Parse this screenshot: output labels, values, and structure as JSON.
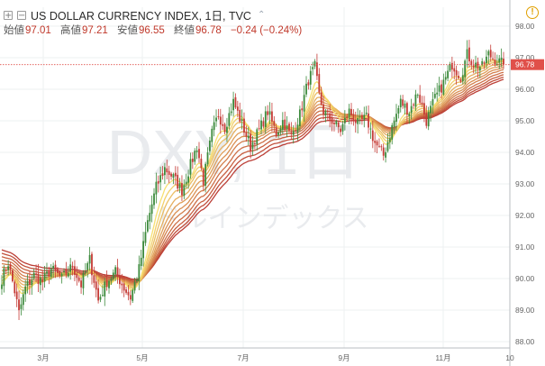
{
  "header": {
    "plus_symbol": "+",
    "minus_symbol": "−",
    "title": "US DOLLAR CURRENCY INDEX, 1日, TVC",
    "chevron": "⌃",
    "alert_symbol": "!",
    "ohlc": [
      {
        "label": "始値",
        "value": "97.01"
      },
      {
        "label": "高値",
        "value": "97.21"
      },
      {
        "label": "安値",
        "value": "96.55"
      },
      {
        "label": "終値",
        "value": "96.78"
      }
    ],
    "change": "−0.24 (−0.24%)"
  },
  "watermark": {
    "symbol": "DXY, 1日",
    "name": "ドルインデックス"
  },
  "colors": {
    "up": "#3c8a3c",
    "down": "#c53b36",
    "ribbon_fast": "#f7de6a",
    "ribbon_slow": "#b8352c",
    "price_label": "#e0504a"
  },
  "chart_data": {
    "type": "candlestick",
    "title": "US DOLLAR CURRENCY INDEX, 1日, TVC",
    "xlabel": "",
    "ylabel": "",
    "ylim": [
      87.8,
      98.6
    ],
    "x_ticks": [
      "3月",
      "5月",
      "7月",
      "9月",
      "11月",
      "10"
    ],
    "y_ticks": [
      "88.00",
      "89.00",
      "90.00",
      "91.00",
      "92.00",
      "93.00",
      "94.00",
      "95.00",
      "96.00",
      "97.00",
      "98.00"
    ],
    "last_price": "96.78",
    "price_anchors": [
      [
        0,
        90.0
      ],
      [
        3,
        90.5
      ],
      [
        6,
        89.6
      ],
      [
        8,
        88.9
      ],
      [
        11,
        89.7
      ],
      [
        15,
        90.1
      ],
      [
        19,
        89.9
      ],
      [
        23,
        90.3
      ],
      [
        28,
        90.0
      ],
      [
        33,
        90.4
      ],
      [
        37,
        89.8
      ],
      [
        41,
        90.6
      ],
      [
        45,
        89.3
      ],
      [
        49,
        89.9
      ],
      [
        53,
        90.2
      ],
      [
        57,
        89.7
      ],
      [
        60,
        89.4
      ],
      [
        64,
        90.3
      ],
      [
        68,
        91.8
      ],
      [
        72,
        92.9
      ],
      [
        76,
        93.5
      ],
      [
        80,
        93.2
      ],
      [
        84,
        92.8
      ],
      [
        88,
        93.6
      ],
      [
        91,
        94.2
      ],
      [
        94,
        93.1
      ],
      [
        98,
        94.6
      ],
      [
        101,
        95.2
      ],
      [
        104,
        94.8
      ],
      [
        108,
        95.6
      ],
      [
        112,
        94.9
      ],
      [
        116,
        94.2
      ],
      [
        120,
        94.7
      ],
      [
        124,
        95.3
      ],
      [
        128,
        94.6
      ],
      [
        131,
        95.0
      ],
      [
        135,
        94.5
      ],
      [
        139,
        95.2
      ],
      [
        143,
        96.3
      ],
      [
        146,
        96.7
      ],
      [
        148,
        95.8
      ],
      [
        150,
        95.3
      ],
      [
        154,
        95.0
      ],
      [
        158,
        94.7
      ],
      [
        162,
        95.3
      ],
      [
        166,
        94.9
      ],
      [
        170,
        95.1
      ],
      [
        174,
        94.3
      ],
      [
        178,
        93.9
      ],
      [
        182,
        94.8
      ],
      [
        186,
        95.6
      ],
      [
        190,
        95.3
      ],
      [
        194,
        95.9
      ],
      [
        198,
        95.0
      ],
      [
        202,
        95.7
      ],
      [
        206,
        96.2
      ],
      [
        210,
        96.8
      ],
      [
        214,
        96.4
      ],
      [
        217,
        97.1
      ],
      [
        220,
        96.8
      ],
      [
        224,
        96.7
      ],
      [
        227,
        97.1
      ],
      [
        231,
        96.9
      ],
      [
        234,
        96.78
      ]
    ],
    "ribbon_periods": [
      8,
      11,
      14,
      18,
      22,
      26,
      30,
      35,
      40,
      45,
      50
    ]
  }
}
